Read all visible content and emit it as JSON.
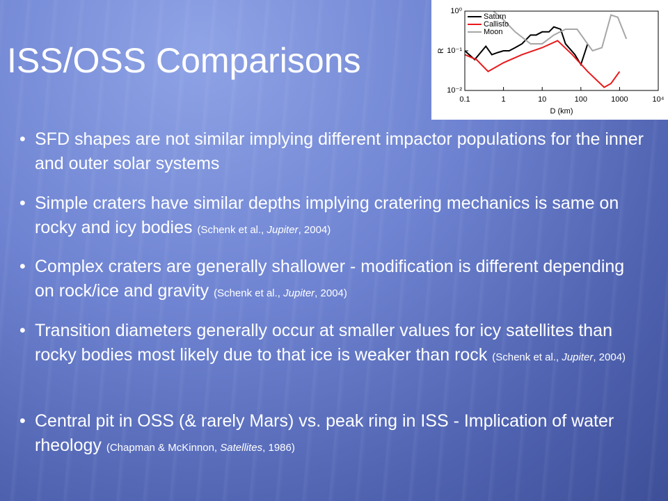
{
  "slide": {
    "title": "ISS/OSS Comparisons",
    "bullets": [
      {
        "text": "SFD shapes are not similar implying different impactor populations for the inner and outer solar systems"
      },
      {
        "text": "Simple craters have similar depths implying cratering mechanics is same on rocky and icy bodies",
        "cite_pre": "(Schenk et al., ",
        "cite_italic": "Jupiter",
        "cite_post": ", 2004)"
      },
      {
        "text": "Complex craters are generally shallower - modification is different depending on rock/ice and gravity",
        "cite_pre": "(Schenk et al., ",
        "cite_italic": "Jupiter",
        "cite_post": ", 2004)"
      },
      {
        "text": "Transition diameters generally occur at smaller values for icy satellites than rocky bodies most likely due to that ice is weaker than rock",
        "cite_pre": "(Schenk et al., ",
        "cite_italic": "Jupiter",
        "cite_post": ", 2004)"
      },
      {
        "text": "Central pit in OSS (& rarely Mars) vs. peak ring in ISS - Implication of water rheology",
        "cite_pre": "(Chapman & McKinnon, ",
        "cite_italic": "Satellites",
        "cite_post": ", 1986)"
      }
    ]
  },
  "inset_chart": {
    "type": "line",
    "x_label": "D (km)",
    "y_label": "R",
    "xscale": "log",
    "yscale": "log",
    "xlim": [
      0.1,
      10000
    ],
    "ylim": [
      0.01,
      1
    ],
    "xticks": [
      0.1,
      1,
      10,
      100,
      1000,
      {
        "value": 10000,
        "label": "10⁴"
      }
    ],
    "yticks": [
      {
        "value": 0.01,
        "label": "10⁻²"
      },
      {
        "value": 0.1,
        "label": "10⁻¹"
      },
      {
        "value": 1,
        "label": "10⁰"
      }
    ],
    "legend": "upper-left",
    "series": [
      {
        "name": "Saturn",
        "color": "#000000",
        "x": [
          0.1,
          0.18,
          0.35,
          0.5,
          0.7,
          1,
          1.4,
          2,
          3,
          5,
          7,
          10,
          15,
          20,
          30,
          40,
          70,
          100,
          150
        ],
        "values": [
          0.1,
          0.06,
          0.13,
          0.08,
          0.09,
          0.1,
          0.1,
          0.12,
          0.15,
          0.25,
          0.25,
          0.3,
          0.3,
          0.4,
          0.35,
          0.15,
          0.08,
          0.045,
          0.15
        ]
      },
      {
        "name": "Callisto",
        "color": "#e8191b",
        "x": [
          0.1,
          0.2,
          0.4,
          1,
          3,
          10,
          25,
          60,
          150,
          400,
          600,
          1000
        ],
        "values": [
          0.08,
          0.06,
          0.03,
          0.05,
          0.08,
          0.12,
          0.18,
          0.08,
          0.03,
          0.012,
          0.015,
          0.03
        ]
      },
      {
        "name": "Moon",
        "color": "#a6a6a6",
        "x": [
          0.55,
          1,
          2,
          5,
          10,
          20,
          40,
          80,
          120,
          200,
          350,
          600,
          900,
          1500
        ],
        "values": [
          1,
          0.6,
          0.3,
          0.15,
          0.15,
          0.25,
          0.35,
          0.35,
          0.2,
          0.1,
          0.12,
          0.8,
          0.7,
          0.2
        ]
      }
    ]
  }
}
